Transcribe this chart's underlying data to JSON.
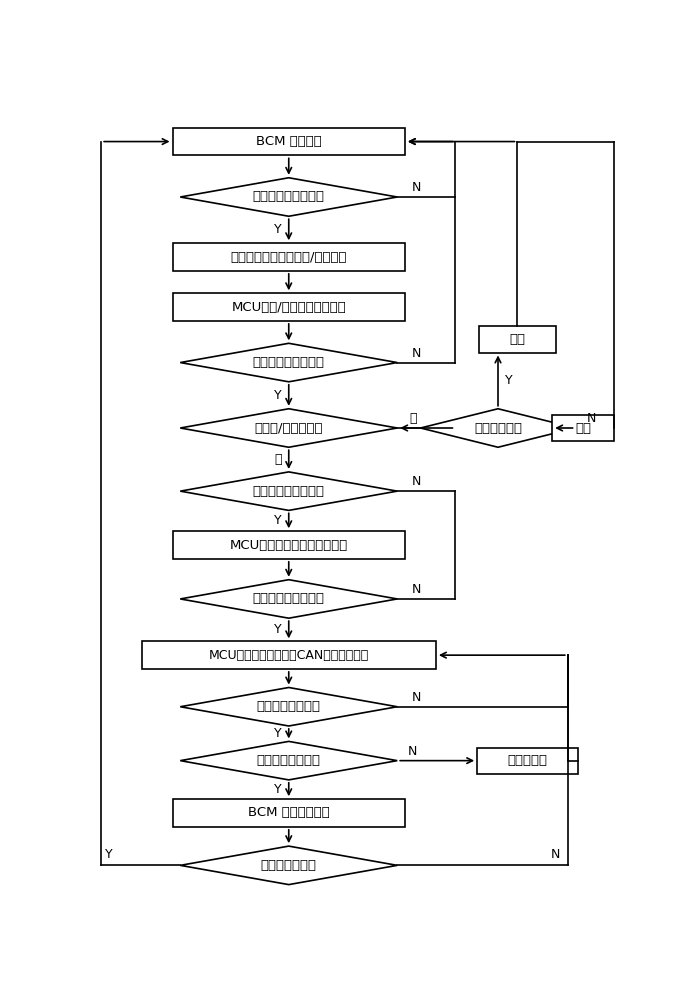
{
  "lc": "#000000",
  "lw": 1.2,
  "fs": 9.5,
  "fs_label": 9.0,
  "nodes": {
    "bcm": {
      "label": "BCM 设防状态",
      "type": "rect"
    },
    "d1": {
      "label": "是否接收到高频信号",
      "type": "diamond"
    },
    "r1": {
      "label": "将高频信号解调成为开/闭锁密文",
      "type": "rect"
    },
    "r2": {
      "label": "MCU将开/闭锁密文进行解密",
      "type": "rect"
    },
    "d2": {
      "label": "判断开锁码是否合法",
      "type": "diamond"
    },
    "d3": {
      "label": "判断开/闭锁码类型",
      "type": "diamond"
    },
    "d_sat": {
      "label": "是否满足设防",
      "type": "diamond"
    },
    "lock1": {
      "label": "闭锁",
      "type": "rect"
    },
    "lock2": {
      "label": "闭锁",
      "type": "rect"
    },
    "d4": {
      "label": "是否有低频应答信号",
      "type": "diamond"
    },
    "r3": {
      "label": "MCU将应答密文进行一次解密",
      "type": "rect"
    },
    "d5": {
      "label": "判断应答信号合法否",
      "type": "diamond"
    },
    "r4": {
      "label": "MCU将一次解密报文经CAN传输给发动机",
      "type": "rect"
    },
    "d6": {
      "label": "发动机确认回传否",
      "type": "diamond"
    },
    "d7": {
      "label": "发动机解锁成功否",
      "type": "diamond"
    },
    "r5": {
      "label": "BCM和发动机解锁",
      "type": "rect"
    },
    "lock_e": {
      "label": "锁止发动机",
      "type": "rect"
    },
    "d_run": {
      "label": "发动机是否运行",
      "type": "diamond"
    }
  }
}
